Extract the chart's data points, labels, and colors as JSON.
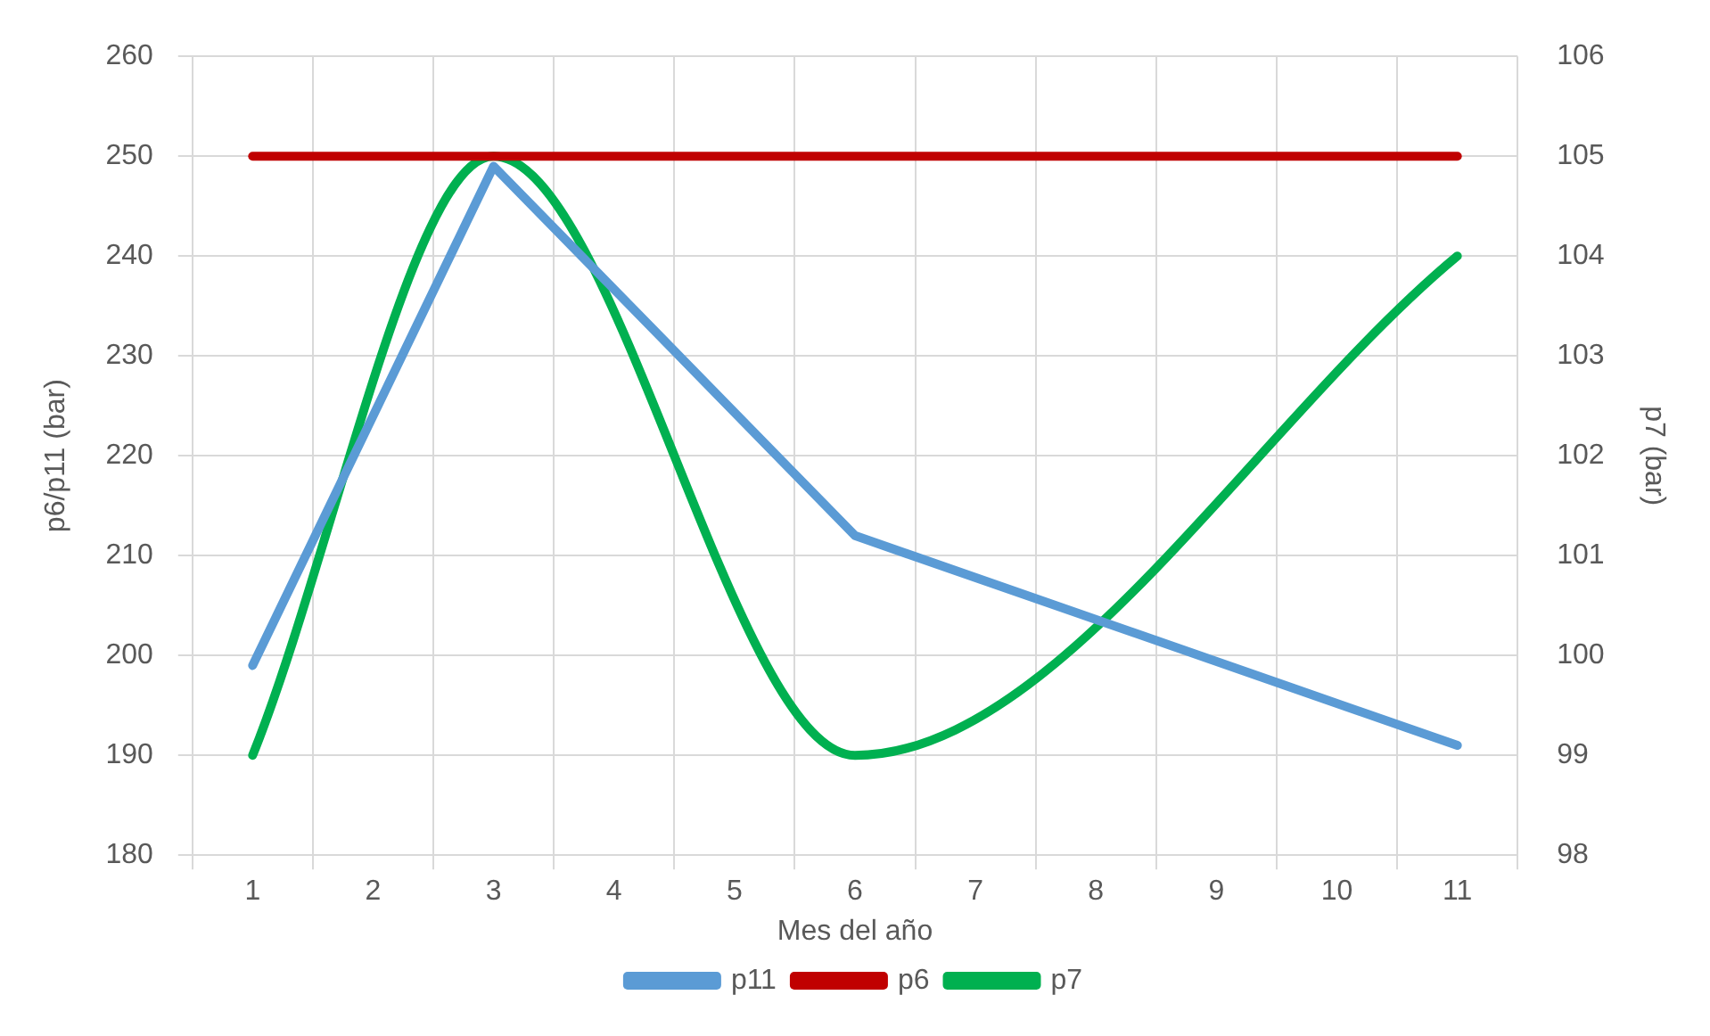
{
  "chart_data": {
    "type": "line",
    "xlabel": "Mes del año",
    "ylabel": "p6/p11 (bar)",
    "y2label": "p7 (bar)",
    "categories": [
      "1",
      "2",
      "3",
      "4",
      "5",
      "6",
      "7",
      "8",
      "9",
      "10",
      "11"
    ],
    "series": [
      {
        "name": "p11",
        "color": "#5b9bd5",
        "values": [
          199,
          null,
          249,
          null,
          null,
          212,
          null,
          null,
          null,
          null,
          191
        ]
      },
      {
        "name": "p6",
        "color": "#c00000",
        "values": [
          250,
          null,
          null,
          null,
          null,
          null,
          null,
          null,
          null,
          null,
          250
        ]
      },
      {
        "name": "p7",
        "color": "#00b050",
        "axis": "y2",
        "values": [
          99,
          null,
          105,
          null,
          null,
          99,
          null,
          null,
          null,
          null,
          104
        ]
      }
    ],
    "ylim": [
      180,
      260
    ],
    "yticks": [
      180,
      190,
      200,
      210,
      220,
      230,
      240,
      250,
      260
    ],
    "y2lim": [
      98,
      106
    ],
    "y2ticks": [
      98,
      99,
      100,
      101,
      102,
      103,
      104,
      105,
      106
    ],
    "grid": true,
    "legend": "bottom",
    "marker": "none",
    "line_style": "solid"
  }
}
